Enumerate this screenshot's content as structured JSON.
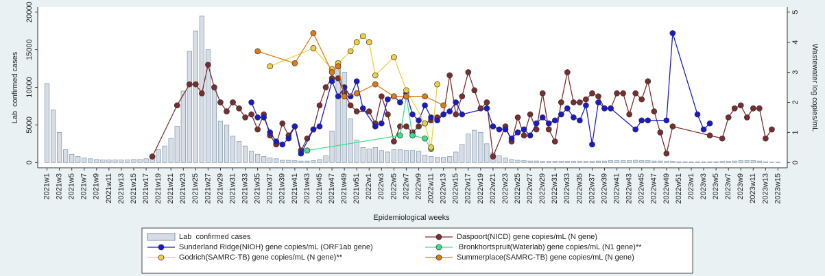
{
  "chart_data": {
    "type": "combo",
    "x_label": "Epidemiological weeks",
    "y_label": "Lab  confirmed cases",
    "y2_label": "Wastewater log copies/mL",
    "xlim": [
      -0.5,
      120.5
    ],
    "ylim": [
      -700,
      20700
    ],
    "y2lim": [
      -0.175,
      5.175
    ],
    "yticks": [
      0,
      5000,
      10000,
      15000,
      20000
    ],
    "y2ticks": [
      0,
      1,
      2,
      3,
      4,
      5
    ],
    "xticks": [
      {
        "value": 1,
        "label": "2021w1"
      },
      {
        "value": 3,
        "label": "2021w3"
      },
      {
        "value": 5,
        "label": "2021w5"
      },
      {
        "value": 7,
        "label": "2021w7"
      },
      {
        "value": 9,
        "label": "2021w9"
      },
      {
        "value": 11,
        "label": "2021w11"
      },
      {
        "value": 13,
        "label": "2021w13"
      },
      {
        "value": 15,
        "label": "2021w15"
      },
      {
        "value": 17,
        "label": "2021w17"
      },
      {
        "value": 19,
        "label": "2021w19"
      },
      {
        "value": 21,
        "label": "2021w21"
      },
      {
        "value": 23,
        "label": "2021w23"
      },
      {
        "value": 25,
        "label": "2021w25"
      },
      {
        "value": 27,
        "label": "2021w27"
      },
      {
        "value": 29,
        "label": "2021w29"
      },
      {
        "value": 31,
        "label": "2021w31"
      },
      {
        "value": 33,
        "label": "2021w33"
      },
      {
        "value": 35,
        "label": "2021w35"
      },
      {
        "value": 37,
        "label": "2021w37"
      },
      {
        "value": 39,
        "label": "2021w39"
      },
      {
        "value": 41,
        "label": "2021w41"
      },
      {
        "value": 43,
        "label": "2021w43"
      },
      {
        "value": 45,
        "label": "2021w45"
      },
      {
        "value": 47,
        "label": "2021w47"
      },
      {
        "value": 49,
        "label": "2021w49"
      },
      {
        "value": 51,
        "label": "2021w51"
      },
      {
        "value": 53,
        "label": "2022w1"
      },
      {
        "value": 55,
        "label": "2022w3"
      },
      {
        "value": 57,
        "label": "2022w5"
      },
      {
        "value": 59,
        "label": "2022w7"
      },
      {
        "value": 61,
        "label": "2022w9"
      },
      {
        "value": 63,
        "label": "2022w11"
      },
      {
        "value": 65,
        "label": "2022w13"
      },
      {
        "value": 67,
        "label": "2022w15"
      },
      {
        "value": 69,
        "label": "2022w17"
      },
      {
        "value": 71,
        "label": "2022w19"
      },
      {
        "value": 73,
        "label": "2022w21"
      },
      {
        "value": 75,
        "label": "2022w23"
      },
      {
        "value": 77,
        "label": "2022w25"
      },
      {
        "value": 79,
        "label": "2022w27"
      },
      {
        "value": 81,
        "label": "2022w29"
      },
      {
        "value": 83,
        "label": "2022w31"
      },
      {
        "value": 85,
        "label": "2022w33"
      },
      {
        "value": 87,
        "label": "2022w35"
      },
      {
        "value": 89,
        "label": "2022w37"
      },
      {
        "value": 91,
        "label": "2022w39"
      },
      {
        "value": 93,
        "label": "2022w41"
      },
      {
        "value": 95,
        "label": "2022w43"
      },
      {
        "value": 97,
        "label": "2022w45"
      },
      {
        "value": 99,
        "label": "2022w47"
      },
      {
        "value": 101,
        "label": "2022w49"
      },
      {
        "value": 103,
        "label": "2022w51"
      },
      {
        "value": 105,
        "label": "2023w1"
      },
      {
        "value": 107,
        "label": "2023w3"
      },
      {
        "value": 109,
        "label": "2023w5"
      },
      {
        "value": 111,
        "label": "2023w7"
      },
      {
        "value": 113,
        "label": "2023w9"
      },
      {
        "value": 115,
        "label": "2023w11"
      },
      {
        "value": 117,
        "label": "2023w13"
      },
      {
        "value": 119,
        "label": "2023w15"
      }
    ],
    "series": [
      {
        "name": "Lab  confirmed cases",
        "type": "bar",
        "color": "#d6dde6",
        "x": [
          1,
          2,
          3,
          4,
          5,
          6,
          7,
          8,
          9,
          10,
          11,
          12,
          13,
          14,
          15,
          16,
          17,
          18,
          19,
          20,
          21,
          22,
          23,
          24,
          25,
          26,
          27,
          28,
          29,
          30,
          31,
          32,
          33,
          34,
          35,
          36,
          37,
          38,
          39,
          40,
          41,
          42,
          43,
          44,
          45,
          46,
          47,
          48,
          49,
          50,
          51,
          52,
          53,
          54,
          55,
          56,
          57,
          58,
          59,
          60,
          61,
          62,
          63,
          64,
          65,
          66,
          67,
          68,
          69,
          70,
          71,
          72,
          73,
          74,
          75,
          76,
          77,
          78,
          79,
          80,
          81,
          82,
          83,
          84,
          85,
          86,
          87,
          88,
          89,
          90,
          91,
          92,
          93,
          94,
          95,
          96,
          97,
          98,
          99,
          100,
          101,
          102,
          103,
          104,
          105,
          106,
          107,
          108,
          109,
          110,
          111,
          112,
          113,
          114,
          115,
          116,
          117,
          118,
          119
        ],
        "values": [
          10500,
          7000,
          4000,
          1700,
          1100,
          800,
          600,
          500,
          400,
          350,
          350,
          350,
          350,
          350,
          400,
          400,
          500,
          900,
          1700,
          2200,
          3200,
          4800,
          9500,
          14800,
          17500,
          19500,
          15000,
          10000,
          5500,
          5000,
          3500,
          2800,
          2200,
          1500,
          1100,
          800,
          600,
          500,
          300,
          300,
          250,
          200,
          200,
          250,
          400,
          900,
          4200,
          13500,
          12000,
          5800,
          3000,
          2000,
          1800,
          2000,
          1600,
          1400,
          1700,
          1700,
          1600,
          1600,
          1500,
          1000,
          800,
          700,
          700,
          800,
          1400,
          2400,
          3800,
          4300,
          4000,
          2500,
          1300,
          900,
          600,
          400,
          300,
          250,
          200,
          200,
          150,
          150,
          150,
          150,
          150,
          150,
          150,
          150,
          150,
          200,
          200,
          250,
          250,
          250,
          250,
          300,
          250,
          250,
          200,
          200,
          150,
          150,
          100,
          100,
          100,
          100,
          100,
          100,
          100,
          150,
          150,
          200,
          250,
          250,
          250,
          200,
          100,
          50,
          50
        ]
      },
      {
        "name": "Daspoort(NICD) gene copies/mL (N gene)",
        "type": "line",
        "axis": "y2",
        "color": "#7a2e2e",
        "x": [
          18,
          22,
          24,
          25,
          26,
          27,
          28,
          29,
          30,
          31,
          32,
          33,
          34,
          35,
          36,
          37,
          38,
          39,
          40,
          41,
          42,
          43,
          44,
          45,
          46,
          47,
          48,
          49,
          50,
          51,
          53,
          54,
          55,
          56,
          57,
          58,
          59,
          60,
          61,
          62,
          63,
          64,
          65,
          66,
          67,
          68,
          69,
          70,
          71,
          72,
          73,
          75,
          76,
          77,
          78,
          79,
          80,
          81,
          82,
          83,
          84,
          85,
          86,
          87,
          88,
          89,
          90,
          91,
          92,
          93,
          94,
          95,
          96,
          97,
          98,
          99,
          100,
          101,
          102,
          108,
          110,
          111,
          112,
          113,
          114,
          115,
          116,
          117,
          118
        ],
        "values": [
          0.2,
          1.9,
          2.6,
          2.6,
          2.3,
          3.25,
          2.5,
          2.0,
          1.7,
          2.0,
          1.8,
          1.5,
          1.6,
          1.1,
          1.6,
          0.9,
          0.6,
          1.3,
          0.9,
          1.2,
          0.4,
          0.8,
          1.1,
          1.9,
          2.5,
          2.8,
          2.8,
          2.3,
          1.9,
          1.7,
          1.7,
          1.3,
          2.2,
          1.6,
          0.7,
          1.2,
          1.2,
          1.0,
          1.2,
          1.3,
          1.4,
          1.5,
          1.6,
          2.9,
          1.6,
          2.2,
          3.0,
          2.4,
          1.8,
          2.0,
          0.2,
          1.2,
          0.7,
          1.5,
          0.9,
          1.6,
          1.1,
          2.3,
          1.1,
          0.7,
          2.0,
          3.0,
          2.0,
          2.0,
          2.1,
          2.3,
          2.2,
          1.8,
          1.8,
          2.3,
          2.3,
          1.6,
          2.3,
          2.1,
          2.7,
          1.7,
          1.0,
          0.3,
          1.2,
          0.9,
          0.8,
          1.5,
          1.8,
          1.9,
          1.5,
          1.8,
          1.8,
          0.8,
          1.1
        ]
      },
      {
        "name": "Sunderland Ridge(NIOH) gene copies/mL (ORF1ab gene)",
        "type": "line",
        "axis": "y2",
        "color": "#1a1acc",
        "x": [
          34,
          35,
          36,
          37,
          38,
          39,
          40,
          41,
          42,
          44,
          45,
          47,
          48,
          49,
          50,
          51,
          52,
          54,
          55,
          56,
          57,
          58,
          59,
          60,
          61,
          62,
          63,
          64,
          65,
          66,
          67,
          68,
          72,
          73,
          74,
          75,
          76,
          77,
          78,
          79,
          80,
          81,
          82,
          83,
          84,
          85,
          86,
          87,
          88,
          89,
          90,
          91,
          92,
          96,
          97,
          98,
          101,
          102,
          106,
          107,
          108
        ],
        "values": [
          2.0,
          1.5,
          1.5,
          1.0,
          0.7,
          0.6,
          0.8,
          1.2,
          0.3,
          1.1,
          1.2,
          2.7,
          2.2,
          2.5,
          2.2,
          2.7,
          1.8,
          1.2,
          1.3,
          2.1,
          2.2,
          2.0,
          2.3,
          1.6,
          1.4,
          1.9,
          1.5,
          1.4,
          1.6,
          1.7,
          2.0,
          1.6,
          1.8,
          1.2,
          1.1,
          1.1,
          0.8,
          1.0,
          1.1,
          0.9,
          1.3,
          1.5,
          1.3,
          1.4,
          1.6,
          1.8,
          1.5,
          1.4,
          1.9,
          0.6,
          2.0,
          1.8,
          1.8,
          1.1,
          1.4,
          1.4,
          1.4,
          4.3,
          1.6,
          1.1,
          1.3
        ]
      },
      {
        "name": " Bronkhortspruit(Waterlab) gene copies/mL (N1 gene)**",
        "type": "line",
        "axis": "y2",
        "color": "#3ee08b",
        "x": [
          43,
          58,
          59,
          60,
          62,
          63
        ],
        "values": [
          0.4,
          0.9,
          2.2,
          0.9,
          0.8,
          0.45
        ]
      },
      {
        "name": "Godrich(SAMRC-TB) gene copies/mL (N gene)**",
        "type": "line",
        "axis": "y2",
        "color": "#f0d040",
        "x": [
          37,
          44,
          47,
          48,
          50,
          51,
          52,
          53,
          54,
          57,
          59,
          62,
          63,
          64
        ],
        "values": [
          3.2,
          3.8,
          3.1,
          3.3,
          3.7,
          4.0,
          4.2,
          4.0,
          2.9,
          3.5,
          2.4,
          1.3,
          0.5,
          2.6
        ]
      },
      {
        "name": "Summerplace(SAMRC-TB) gene copies/mL (N gene)",
        "type": "line",
        "axis": "y2",
        "color": "#e07b10",
        "x": [
          35,
          41,
          44,
          47,
          48,
          49,
          51,
          54,
          57,
          59,
          62,
          65
        ],
        "values": [
          3.7,
          3.3,
          4.3,
          3.0,
          3.2,
          2.2,
          2.3,
          2.6,
          2.2,
          2.2,
          2.2,
          1.9
        ]
      }
    ]
  }
}
